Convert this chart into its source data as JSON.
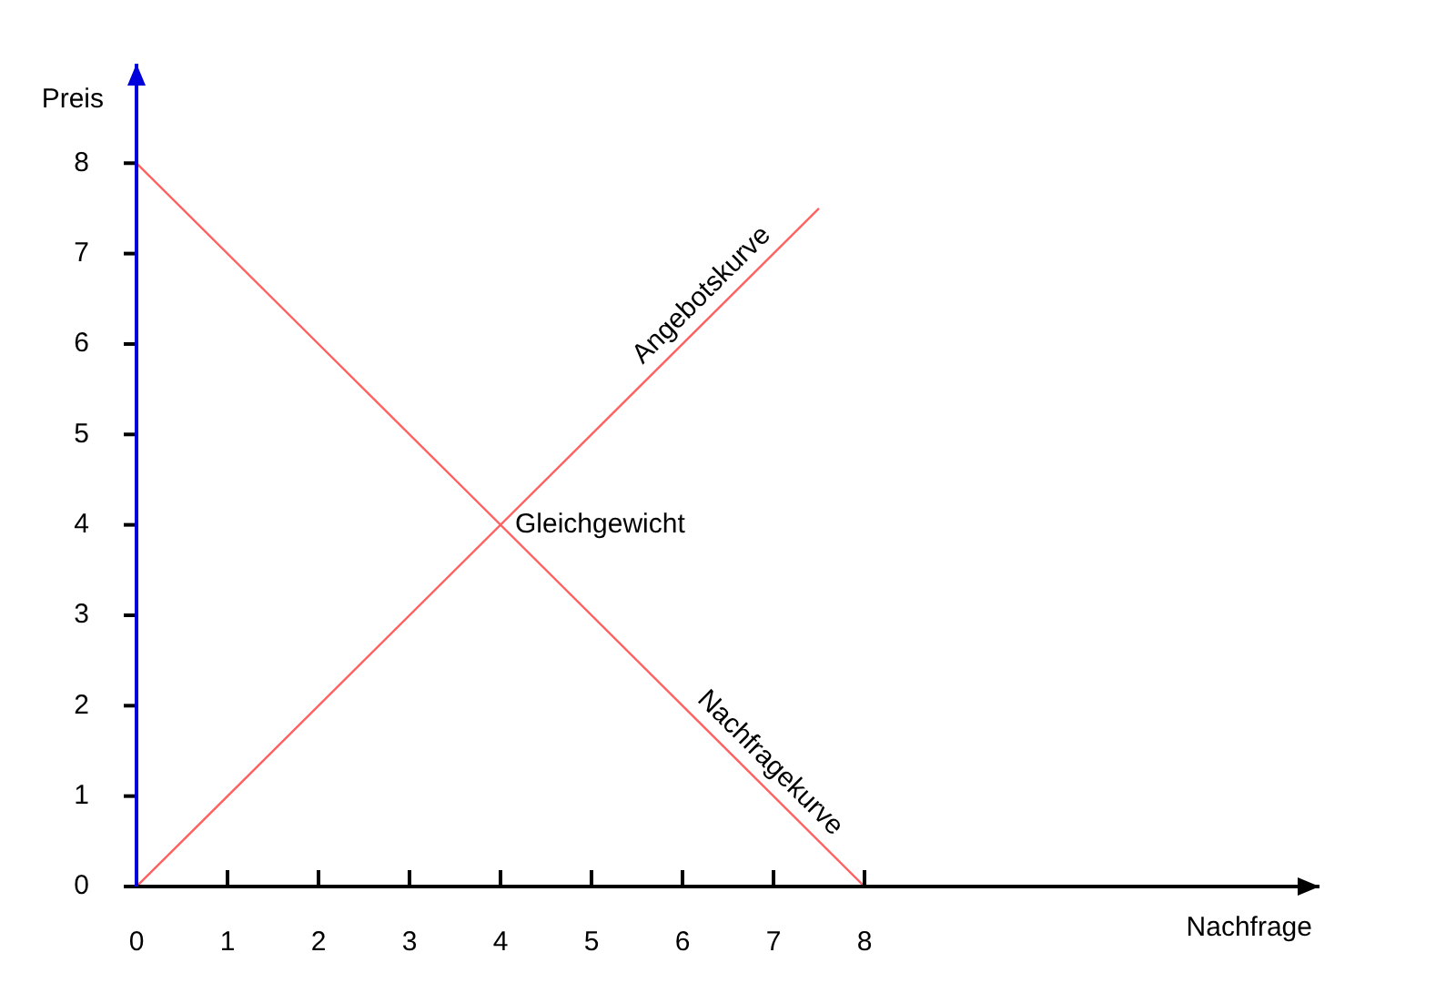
{
  "chart_data": {
    "type": "line",
    "xlabel": "Nachfrage",
    "ylabel": "Preis",
    "xlim": [
      0,
      13
    ],
    "ylim": [
      0,
      9.1
    ],
    "xticks": [
      0,
      1,
      2,
      3,
      4,
      5,
      6,
      7,
      8
    ],
    "yticks": [
      0,
      1,
      2,
      3,
      4,
      5,
      6,
      7,
      8
    ],
    "series": [
      {
        "name": "Angebotskurve",
        "color": "#ff6060",
        "x": [
          0,
          7.5
        ],
        "values": [
          0,
          7.5
        ]
      },
      {
        "name": "Nachfragekurve",
        "color": "#ff6060",
        "x": [
          0,
          8
        ],
        "values": [
          8,
          0
        ]
      }
    ],
    "annotations": [
      {
        "text": "Gleichgewicht",
        "x": 4,
        "y": 4
      }
    ],
    "grid": false,
    "legend": false,
    "marker": "none",
    "line_style": "solid"
  }
}
